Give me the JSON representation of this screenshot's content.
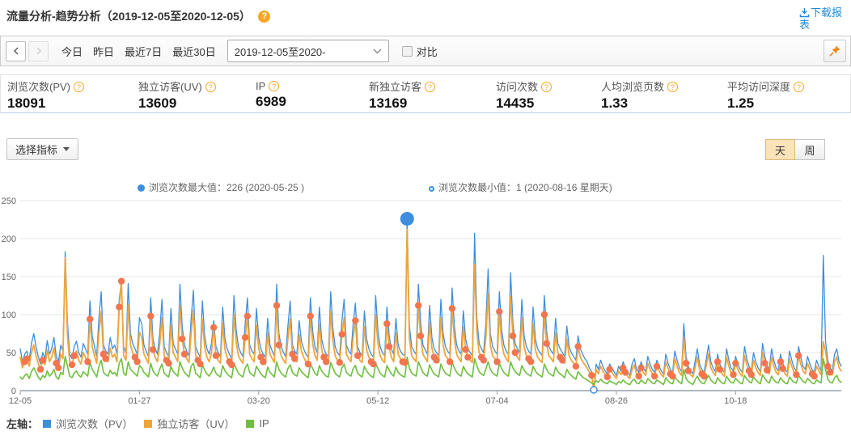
{
  "header": {
    "title": "流量分析-趋势分析（2019-12-05至2020-12-05）",
    "help_icon": "question-icon",
    "download_label": "下载报表"
  },
  "toolbar": {
    "quick_ranges": [
      "今日",
      "昨日",
      "最近7日",
      "最近30日"
    ],
    "date_select_value": "2019-12-05至2020-",
    "compare_label": "对比",
    "compare_checked": false,
    "pin_icon": "pushpin-icon"
  },
  "metrics": [
    {
      "label": "浏览次数(PV)",
      "value": "18091"
    },
    {
      "label": "独立访客(UV)",
      "value": "13609"
    },
    {
      "label": "IP",
      "value": "6989"
    },
    {
      "label": "新独立访客",
      "value": "13169"
    },
    {
      "label": "访问次数",
      "value": "14435"
    },
    {
      "label": "人均浏览页数",
      "value": "1.33"
    },
    {
      "label": "平均访问深度",
      "value": "1.25"
    }
  ],
  "controls": {
    "select_metrics_label": "选择指标",
    "granularity": [
      {
        "label": "天",
        "active": true
      },
      {
        "label": "周",
        "active": false
      }
    ]
  },
  "annotations": {
    "max_text": "浏览次数最大值：226 (2020-05-25 )",
    "min_text": "浏览次数最小值：1 (2020-08-16 星期天)",
    "bullet_color": "#3d8edd"
  },
  "legend": {
    "axis_label": "左轴：",
    "items": [
      {
        "label": "浏览次数（PV）",
        "color": "#3d8edd"
      },
      {
        "label": "独立访客（UV）",
        "color": "#efa53d"
      },
      {
        "label": "IP",
        "color": "#6fbe3f"
      }
    ]
  },
  "chart_data": {
    "type": "line",
    "x_start": "2019-12-05",
    "x_end": "2020-12-05",
    "x_ticks": [
      {
        "label": "12-05",
        "day": 0
      },
      {
        "label": "01-27",
        "day": 53
      },
      {
        "label": "03-20",
        "day": 106
      },
      {
        "label": "05-12",
        "day": 159
      },
      {
        "label": "07-04",
        "day": 212
      },
      {
        "label": "08-26",
        "day": 265
      },
      {
        "label": "10-18",
        "day": 318
      }
    ],
    "ylim": [
      0,
      250
    ],
    "y_ticks": [
      0,
      50,
      100,
      150,
      200,
      250
    ],
    "grid": true,
    "legend_position": "bottom",
    "series": [
      {
        "name": "浏览次数（PV）",
        "color": "#3d8edd",
        "values": [
          55,
          38,
          48,
          52,
          40,
          62,
          75,
          58,
          45,
          35,
          50,
          42,
          66,
          48,
          55,
          70,
          45,
          38,
          60,
          52,
          183,
          90,
          48,
          42,
          58,
          65,
          50,
          44,
          62,
          55,
          48,
          118,
          72,
          58,
          45,
          95,
          130,
          60,
          52,
          48,
          70,
          55,
          60,
          48,
          120,
          144,
          58,
          50,
          141,
          75,
          62,
          55,
          48,
          96,
          88,
          60,
          52,
          45,
          122,
          68,
          55,
          48,
          75,
          120,
          58,
          50,
          45,
          108,
          62,
          55,
          48,
          140,
          85,
          60,
          52,
          46,
          95,
          132,
          58,
          50,
          44,
          118,
          72,
          55,
          48,
          62,
          92,
          58,
          50,
          45,
          110,
          68,
          55,
          48,
          42,
          125,
          80,
          58,
          50,
          45,
          88,
          122,
          60,
          52,
          48,
          108,
          70,
          55,
          48,
          44,
          95,
          60,
          52,
          46,
          140,
          75,
          58,
          50,
          45,
          85,
          118,
          60,
          52,
          48,
          92,
          65,
          55,
          48,
          44,
          122,
          78,
          58,
          50,
          110,
          68,
          55,
          48,
          45,
          130,
          82,
          58,
          50,
          46,
          92,
          120,
          60,
          52,
          48,
          88,
          115,
          58,
          50,
          46,
          105,
          68,
          55,
          48,
          44,
          125,
          78,
          58,
          50,
          46,
          110,
          72,
          55,
          48,
          95,
          60,
          52,
          48,
          46,
          226,
          85,
          58,
          52,
          48,
          140,
          90,
          60,
          54,
          48,
          112,
          70,
          55,
          50,
          46,
          120,
          75,
          58,
          52,
          48,
          135,
          85,
          60,
          52,
          48,
          105,
          68,
          55,
          50,
          46,
          207,
          95,
          62,
          55,
          50,
          88,
          160,
          75,
          58,
          52,
          48,
          130,
          80,
          60,
          52,
          48,
          155,
          90,
          62,
          55,
          50,
          120,
          72,
          58,
          52,
          48,
          110,
          68,
          55,
          50,
          46,
          125,
          78,
          58,
          52,
          48,
          95,
          62,
          55,
          50,
          45,
          85,
          58,
          50,
          45,
          40,
          72,
          55,
          48,
          42,
          38,
          30,
          25,
          1,
          35,
          28,
          40,
          32,
          26,
          22,
          35,
          30,
          25,
          20,
          32,
          26,
          38,
          30,
          24,
          20,
          35,
          42,
          28,
          24,
          38,
          30,
          25,
          45,
          35,
          28,
          24,
          40,
          32,
          26,
          22,
          48,
          36,
          28,
          24,
          52,
          40,
          30,
          25,
          88,
          45,
          32,
          26,
          22,
          38,
          55,
          35,
          28,
          24,
          42,
          60,
          38,
          30,
          25,
          48,
          35,
          28,
          24,
          55,
          40,
          30,
          26,
          45,
          35,
          28,
          24,
          58,
          42,
          32,
          26,
          50,
          38,
          30,
          25,
          62,
          45,
          34,
          28,
          55,
          40,
          30,
          26,
          48,
          36,
          28,
          24,
          52,
          40,
          30,
          26,
          58,
          44,
          32,
          28,
          45,
          35,
          28,
          24,
          40,
          32,
          26,
          178,
          65,
          40,
          30,
          26,
          48,
          55,
          38,
          32
        ]
      },
      {
        "name": "独立访客（UV）",
        "color": "#efa53d",
        "values": [
          44,
          30,
          38,
          42,
          32,
          50,
          60,
          46,
          36,
          28,
          40,
          34,
          53,
          38,
          44,
          56,
          36,
          30,
          48,
          42,
          175,
          72,
          38,
          34,
          46,
          52,
          40,
          35,
          50,
          44,
          38,
          94,
          58,
          46,
          36,
          76,
          104,
          48,
          42,
          38,
          56,
          44,
          48,
          38,
          110,
          144,
          46,
          40,
          113,
          60,
          50,
          44,
          38,
          77,
          70,
          48,
          42,
          36,
          98,
          54,
          44,
          38,
          60,
          96,
          46,
          40,
          36,
          86,
          50,
          44,
          38,
          112,
          68,
          48,
          42,
          37,
          76,
          106,
          46,
          40,
          35,
          94,
          58,
          44,
          38,
          50,
          83,
          46,
          40,
          36,
          88,
          54,
          44,
          38,
          34,
          100,
          64,
          46,
          40,
          36,
          70,
          98,
          48,
          42,
          38,
          86,
          56,
          44,
          38,
          35,
          76,
          48,
          42,
          37,
          112,
          60,
          46,
          40,
          36,
          68,
          94,
          48,
          42,
          38,
          74,
          52,
          44,
          38,
          35,
          98,
          62,
          46,
          40,
          88,
          54,
          44,
          38,
          36,
          104,
          66,
          46,
          40,
          37,
          74,
          96,
          48,
          42,
          38,
          70,
          92,
          46,
          40,
          37,
          84,
          54,
          44,
          38,
          35,
          100,
          62,
          46,
          40,
          37,
          88,
          58,
          44,
          38,
          76,
          48,
          42,
          38,
          37,
          212,
          68,
          46,
          42,
          38,
          112,
          72,
          48,
          43,
          38,
          90,
          56,
          44,
          40,
          37,
          96,
          60,
          46,
          42,
          38,
          108,
          68,
          48,
          42,
          38,
          84,
          54,
          44,
          40,
          37,
          166,
          76,
          50,
          44,
          40,
          70,
          128,
          60,
          46,
          42,
          38,
          104,
          64,
          48,
          42,
          38,
          124,
          72,
          50,
          44,
          40,
          96,
          58,
          46,
          42,
          38,
          88,
          54,
          44,
          40,
          37,
          100,
          62,
          46,
          42,
          38,
          76,
          50,
          44,
          40,
          36,
          68,
          46,
          40,
          36,
          32,
          58,
          44,
          38,
          34,
          30,
          24,
          20,
          1,
          28,
          22,
          32,
          26,
          21,
          18,
          28,
          24,
          20,
          16,
          26,
          21,
          30,
          24,
          19,
          16,
          28,
          34,
          22,
          19,
          30,
          24,
          20,
          36,
          28,
          22,
          19,
          32,
          26,
          21,
          18,
          38,
          29,
          22,
          19,
          42,
          32,
          24,
          20,
          70,
          36,
          26,
          21,
          18,
          30,
          44,
          28,
          22,
          19,
          34,
          48,
          30,
          24,
          20,
          38,
          28,
          22,
          19,
          44,
          32,
          24,
          21,
          36,
          28,
          22,
          19,
          46,
          34,
          26,
          21,
          40,
          30,
          24,
          20,
          50,
          36,
          27,
          22,
          44,
          32,
          24,
          21,
          38,
          29,
          22,
          19,
          42,
          32,
          24,
          21,
          46,
          35,
          26,
          22,
          36,
          28,
          22,
          19,
          32,
          26,
          21,
          64,
          52,
          32,
          24,
          21,
          38,
          44,
          30,
          26
        ]
      },
      {
        "name": "IP",
        "color": "#6fbe3f",
        "values": [
          18,
          15,
          20,
          22,
          16,
          25,
          30,
          24,
          18,
          14,
          20,
          17,
          26,
          19,
          22,
          28,
          18,
          15,
          24,
          21,
          45,
          32,
          19,
          17,
          23,
          26,
          20,
          18,
          25,
          22,
          19,
          38,
          28,
          23,
          18,
          32,
          40,
          24,
          21,
          19,
          27,
          22,
          24,
          19,
          36,
          42,
          23,
          20,
          38,
          28,
          25,
          22,
          19,
          33,
          30,
          24,
          21,
          18,
          36,
          26,
          22,
          19,
          28,
          35,
          23,
          20,
          18,
          32,
          25,
          22,
          19,
          38,
          30,
          24,
          21,
          18,
          32,
          36,
          23,
          20,
          17,
          34,
          27,
          22,
          19,
          24,
          31,
          23,
          20,
          18,
          33,
          26,
          22,
          19,
          17,
          36,
          29,
          23,
          20,
          18,
          30,
          35,
          24,
          21,
          19,
          32,
          27,
          22,
          19,
          17,
          31,
          24,
          21,
          18,
          38,
          28,
          23,
          20,
          18,
          29,
          34,
          24,
          21,
          19,
          30,
          25,
          22,
          19,
          17,
          35,
          29,
          23,
          20,
          33,
          26,
          22,
          19,
          18,
          37,
          30,
          23,
          20,
          18,
          30,
          35,
          24,
          21,
          19,
          29,
          33,
          23,
          20,
          18,
          32,
          26,
          22,
          19,
          17,
          36,
          29,
          23,
          20,
          18,
          33,
          27,
          22,
          19,
          31,
          24,
          21,
          19,
          18,
          44,
          30,
          23,
          21,
          19,
          38,
          31,
          24,
          21,
          19,
          34,
          27,
          22,
          20,
          18,
          35,
          28,
          23,
          21,
          19,
          37,
          30,
          24,
          21,
          19,
          32,
          26,
          22,
          20,
          18,
          42,
          33,
          25,
          22,
          20,
          28,
          38,
          28,
          23,
          21,
          19,
          36,
          29,
          24,
          21,
          19,
          38,
          30,
          25,
          22,
          20,
          33,
          27,
          23,
          21,
          19,
          32,
          26,
          22,
          20,
          18,
          35,
          28,
          23,
          21,
          19,
          31,
          25,
          22,
          20,
          17,
          28,
          23,
          20,
          17,
          15,
          25,
          21,
          18,
          16,
          14,
          12,
          10,
          8,
          13,
          11,
          15,
          12,
          10,
          9,
          13,
          11,
          10,
          8,
          12,
          10,
          14,
          11,
          9,
          8,
          13,
          15,
          10,
          9,
          14,
          11,
          9,
          16,
          13,
          10,
          9,
          14,
          12,
          10,
          8,
          17,
          13,
          10,
          9,
          18,
          14,
          11,
          9,
          28,
          16,
          12,
          10,
          8,
          14,
          19,
          13,
          10,
          9,
          15,
          20,
          14,
          11,
          9,
          17,
          13,
          10,
          9,
          19,
          14,
          11,
          10,
          16,
          13,
          10,
          9,
          20,
          15,
          12,
          10,
          18,
          14,
          11,
          9,
          21,
          16,
          12,
          10,
          19,
          14,
          11,
          10,
          17,
          13,
          10,
          9,
          18,
          14,
          11,
          10,
          20,
          16,
          12,
          10,
          16,
          13,
          10,
          9,
          14,
          12,
          10,
          42,
          28,
          15,
          11,
          10,
          17,
          20,
          13,
          11
        ]
      }
    ],
    "weekend_marker": {
      "on_series": "独立访客（UV）",
      "color": "#f1764f",
      "first_day_weekday": "Thursday"
    },
    "max_point": {
      "series": "浏览次数（PV）",
      "value": 226,
      "date": "2020-05-25",
      "day": 172,
      "color": "#3d8edd"
    },
    "min_point": {
      "series": "浏览次数（PV）",
      "value": 1,
      "date": "2020-08-16",
      "day": 255,
      "color": "#3d8edd"
    }
  }
}
